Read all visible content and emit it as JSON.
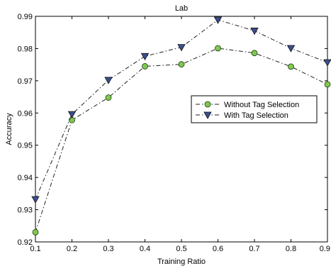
{
  "chart_data": {
    "type": "line",
    "title": "Lab",
    "xlabel": "Training Ratio",
    "ylabel": "Accuracy",
    "xlim": [
      0.1,
      0.9
    ],
    "ylim": [
      0.92,
      0.99
    ],
    "xticks": [
      "0.1",
      "0.2",
      "0.3",
      "0.4",
      "0.5",
      "0.6",
      "0.7",
      "0.8",
      "0.9"
    ],
    "yticks": [
      "0.92",
      "0.93",
      "0.94",
      "0.95",
      "0.96",
      "0.97",
      "0.98",
      "0.99"
    ],
    "x": [
      0.1,
      0.2,
      0.3,
      0.4,
      0.5,
      0.6,
      0.7,
      0.8,
      0.9
    ],
    "grid": false,
    "legend_position": "right",
    "series": [
      {
        "name": "Without Tag Selection",
        "values": [
          0.923,
          0.9578,
          0.9648,
          0.9745,
          0.9751,
          0.9801,
          0.9786,
          0.9744,
          0.9689
        ],
        "marker": "circle",
        "marker_color": "#7ec850",
        "line_style": "dash-dot"
      },
      {
        "name": "With Tag Selection",
        "values": [
          0.9332,
          0.9596,
          0.9702,
          0.9776,
          0.9804,
          0.9889,
          0.9855,
          0.9801,
          0.9757
        ],
        "marker": "triangle-down",
        "marker_color": "#3a4f8f",
        "line_style": "dash-dot"
      }
    ]
  }
}
